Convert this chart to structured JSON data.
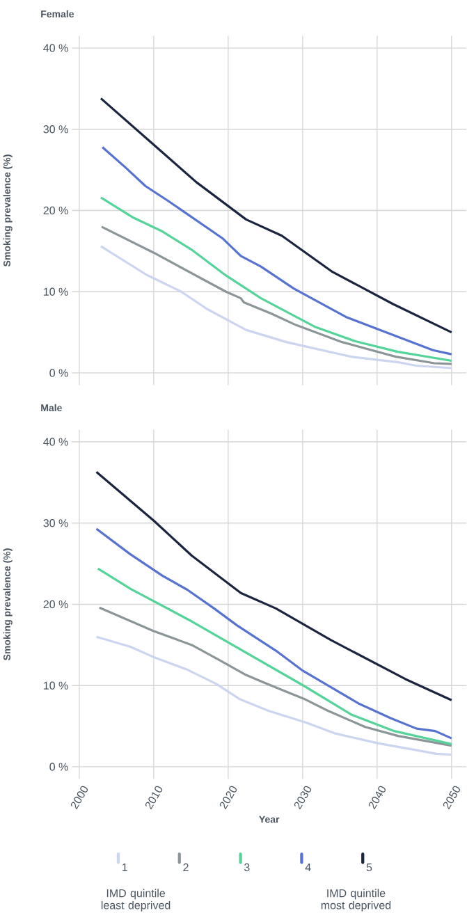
{
  "chart_data": [
    {
      "type": "line",
      "title": "Female",
      "ylabel": "Smoking prevalence (%)",
      "xlim": [
        1999,
        2052
      ],
      "ylim": [
        -1.5,
        41.5
      ],
      "xticks": [
        2000,
        2010,
        2020,
        2030,
        2040,
        2050
      ],
      "yticks": [
        {
          "value": 0,
          "label": "0 %"
        },
        {
          "value": 10,
          "label": "10 %"
        },
        {
          "value": 20,
          "label": "20 %"
        },
        {
          "value": 30,
          "label": "30 %"
        },
        {
          "value": 40,
          "label": "40 %"
        }
      ],
      "tick_labels": "y",
      "grid": true,
      "legend": false,
      "series": [
        {
          "color": "#ccd5f0",
          "x": [
            2002.9,
            2009.0,
            2013.7,
            2017.1,
            2022.4,
            2027.8,
            2036.5,
            2043.0,
            2045.2,
            2050
          ],
          "values": [
            15.6,
            12.1,
            10.0,
            7.9,
            5.3,
            3.8,
            2.0,
            1.3,
            0.9,
            0.6
          ]
        },
        {
          "color": "#8c9598",
          "x": [
            2003.0,
            2010.0,
            2019.7,
            2021.7,
            2022.1,
            2025.8,
            2029.1,
            2035.3,
            2042.5,
            2047.7,
            2050
          ],
          "values": [
            18.0,
            14.8,
            10.0,
            9.2,
            8.7,
            7.3,
            5.9,
            3.8,
            2.0,
            1.2,
            1.1
          ]
        },
        {
          "color": "#55d49a",
          "x": [
            2002.9,
            2007.3,
            2011.0,
            2015.2,
            2019.7,
            2024.4,
            2031.6,
            2037.1,
            2042.8,
            2050
          ],
          "values": [
            21.6,
            19.1,
            17.5,
            15.1,
            12.0,
            9.2,
            5.7,
            3.9,
            2.6,
            1.5
          ]
        },
        {
          "color": "#5673d1",
          "x": [
            2003.1,
            2006.2,
            2008.9,
            2011.9,
            2019.2,
            2021.7,
            2024.4,
            2028.8,
            2035.8,
            2041.8,
            2047.5,
            2050
          ],
          "values": [
            27.8,
            25.3,
            23.0,
            21.2,
            16.6,
            14.4,
            13.1,
            10.4,
            6.9,
            4.8,
            2.8,
            2.3
          ]
        },
        {
          "color": "#1c2540",
          "x": [
            2002.9,
            2010.0,
            2015.7,
            2022.4,
            2027.2,
            2033.9,
            2042.1,
            2050
          ],
          "values": [
            33.8,
            28.1,
            23.5,
            18.9,
            16.9,
            12.5,
            8.5,
            5.0
          ]
        }
      ]
    },
    {
      "type": "line",
      "title": "Male",
      "ylabel": "Smoking prevalence (%)",
      "xlabel": "Year",
      "xlim": [
        1999,
        2052
      ],
      "ylim": [
        -1.5,
        41.5
      ],
      "xticks": [
        2000,
        2010,
        2020,
        2030,
        2040,
        2050
      ],
      "yticks": [
        {
          "value": 0,
          "label": "0 %"
        },
        {
          "value": 10,
          "label": "10 %"
        },
        {
          "value": 20,
          "label": "20 %"
        },
        {
          "value": 30,
          "label": "30 %"
        },
        {
          "value": 40,
          "label": "40 %"
        }
      ],
      "grid": true,
      "legend": "bottom",
      "annotations": [
        "IMD quintile least deprived",
        "IMD quintile most deprived"
      ],
      "series": [
        {
          "name": "1",
          "color": "#ccd5f0",
          "x": [
            2002.3,
            2006.8,
            2010.0,
            2014.4,
            2018.4,
            2021.6,
            2025.4,
            2030.6,
            2034.4,
            2040.1,
            2048.0,
            2050
          ],
          "values": [
            16.0,
            14.8,
            13.5,
            12.0,
            10.2,
            8.3,
            6.9,
            5.4,
            4.1,
            2.9,
            1.6,
            1.5
          ]
        },
        {
          "name": "2",
          "color": "#8c9598",
          "x": [
            2002.7,
            2010.0,
            2015.1,
            2018.9,
            2022.4,
            2024.2,
            2027.1,
            2030.1,
            2033.4,
            2038.4,
            2042.8,
            2050
          ],
          "values": [
            19.6,
            16.7,
            15.0,
            13.1,
            11.3,
            10.6,
            9.5,
            8.4,
            6.9,
            4.9,
            3.8,
            2.6
          ]
        },
        {
          "name": "3",
          "color": "#55d49a",
          "x": [
            2002.5,
            2006.9,
            2015.1,
            2030.1,
            2036.6,
            2042.3,
            2050
          ],
          "values": [
            24.4,
            21.9,
            17.9,
            10.0,
            6.4,
            4.4,
            2.8
          ]
        },
        {
          "name": "4",
          "color": "#5673d1",
          "x": [
            2002.3,
            2006.8,
            2011.2,
            2014.5,
            2018.1,
            2021.2,
            2026.4,
            2029.9,
            2037.5,
            2041.8,
            2045.3,
            2047.8,
            2050
          ],
          "values": [
            29.3,
            26.2,
            23.5,
            21.8,
            19.5,
            17.4,
            14.3,
            11.9,
            7.8,
            6.0,
            4.7,
            4.4,
            3.5
          ]
        },
        {
          "name": "5",
          "color": "#1c2540",
          "x": [
            2002.3,
            2010.0,
            2015.1,
            2021.7,
            2026.4,
            2033.8,
            2043.8,
            2050
          ],
          "values": [
            36.3,
            30.3,
            26.0,
            21.4,
            19.5,
            15.6,
            10.8,
            8.2
          ]
        }
      ]
    }
  ]
}
